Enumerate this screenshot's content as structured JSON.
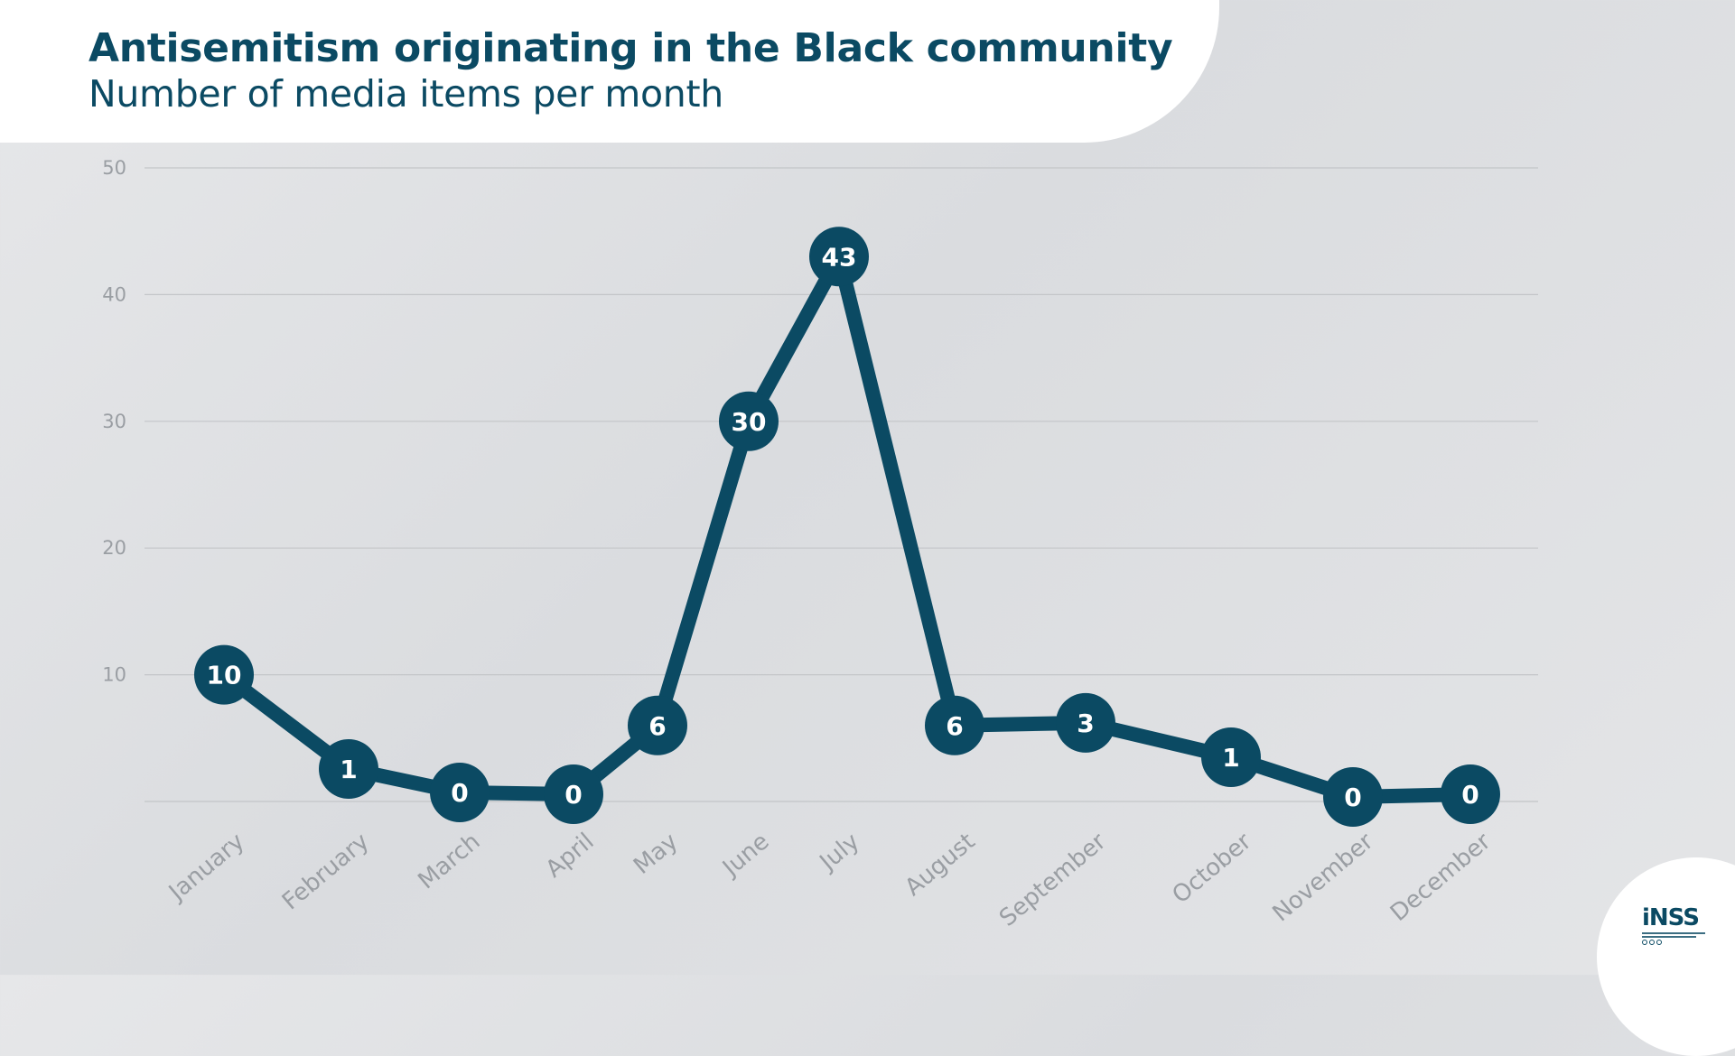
{
  "header": {
    "title": "Antisemitism originating in the Black community",
    "subtitle": "Number of media items per month"
  },
  "logo": {
    "text": "iNSS"
  },
  "colors": {
    "line": "#0b4a63",
    "marker": "#0b4a63",
    "marker_text": "#ffffff",
    "grid": "#c3c5c8",
    "axis_text": "#9a9ea3"
  },
  "chart_data": {
    "type": "line",
    "title": "Antisemitism originating in the Black community",
    "subtitle": "Number of media items per month",
    "xlabel": "",
    "ylabel": "",
    "categories": [
      "January",
      "February",
      "March",
      "April",
      "May",
      "June",
      "July",
      "August",
      "September",
      "October",
      "November",
      "December"
    ],
    "series": [
      {
        "values": [
          10,
          1,
          0,
          0,
          6,
          30,
          43,
          6,
          3,
          1,
          0,
          0
        ]
      }
    ],
    "ylim": [
      0,
      50
    ],
    "yticks": [
      10,
      20,
      30,
      40,
      50
    ],
    "grid": true,
    "data_labels": true,
    "legend": "none"
  }
}
